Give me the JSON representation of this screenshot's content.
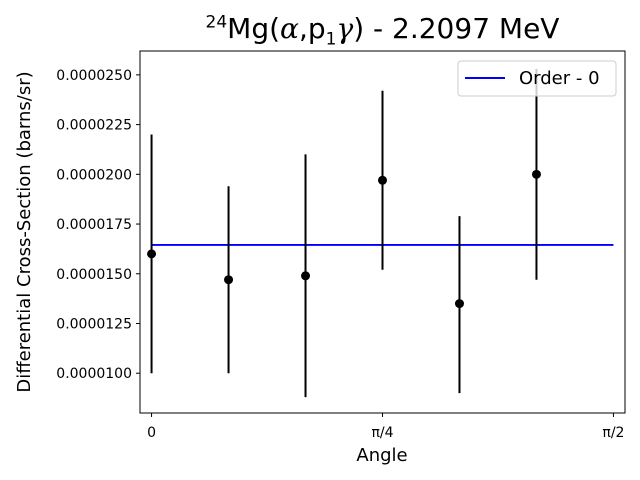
{
  "chart_data": {
    "type": "scatter",
    "title": {
      "isotope_mass": "24",
      "element": "Mg(",
      "alpha": "α",
      "comma_p": ",p",
      "p_index": "1",
      "gamma": "γ",
      "rest": ") - 2.2097 MeV"
    },
    "xlabel": "Angle",
    "ylabel": "Differential Cross-Section (barns/sr)",
    "xlim": [
      -0.0393,
      1.6101
    ],
    "ylim": [
      8e-06,
      2.62e-05
    ],
    "x_ticks": [
      {
        "value": 0,
        "label": "0"
      },
      {
        "value": 0.7854,
        "label": "π/4"
      },
      {
        "value": 1.5708,
        "label": "π/2"
      }
    ],
    "y_ticks": [
      {
        "value": 1e-05,
        "label": "0.0000100"
      },
      {
        "value": 1.25e-05,
        "label": "0.0000125"
      },
      {
        "value": 1.5e-05,
        "label": "0.0000150"
      },
      {
        "value": 1.75e-05,
        "label": "0.0000175"
      },
      {
        "value": 2e-05,
        "label": "0.0000200"
      },
      {
        "value": 2.25e-05,
        "label": "0.0000225"
      },
      {
        "value": 2.5e-05,
        "label": "0.0000250"
      }
    ],
    "points": [
      {
        "x": 0.0,
        "y": 1.6e-05,
        "y_low": 1e-05,
        "y_high": 2.2e-05
      },
      {
        "x": 0.2618,
        "y": 1.47e-05,
        "y_low": 1e-05,
        "y_high": 1.94e-05
      },
      {
        "x": 0.5236,
        "y": 1.49e-05,
        "y_low": 8.8e-06,
        "y_high": 2.1e-05
      },
      {
        "x": 0.7854,
        "y": 1.97e-05,
        "y_low": 1.52e-05,
        "y_high": 2.42e-05
      },
      {
        "x": 1.0472,
        "y": 1.35e-05,
        "y_low": 9e-06,
        "y_high": 1.79e-05
      },
      {
        "x": 1.309,
        "y": 2e-05,
        "y_low": 1.47e-05,
        "y_high": 2.53e-05
      }
    ],
    "series": [
      {
        "name": "Order - 0",
        "x": [
          0,
          1.5708
        ],
        "y": [
          1.645e-05,
          1.645e-05
        ],
        "color": "#0000ff"
      }
    ],
    "point_color": "#000000",
    "grid": false,
    "legend_position": "top-right"
  }
}
